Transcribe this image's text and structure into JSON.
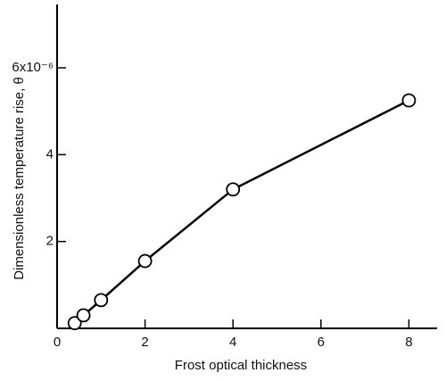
{
  "chart_data": {
    "type": "line",
    "x_label": "Frost optical thickness",
    "y_label": "Dimensionless temperature rise, θ",
    "x": [
      0.4,
      0.6,
      1,
      2,
      4,
      8
    ],
    "series": [
      {
        "color": "#000000",
        "values": [
          0.12,
          0.3,
          0.65,
          1.55,
          3.2,
          5.25
        ]
      }
    ],
    "xlim": [
      0,
      8.6
    ],
    "xticks": [
      0,
      2,
      4,
      6,
      8
    ],
    "ylim": [
      0,
      7.5
    ],
    "yticks": [
      2,
      4,
      {
        "value": 6,
        "label": "6x10⁻⁶"
      }
    ],
    "grid": false
  }
}
